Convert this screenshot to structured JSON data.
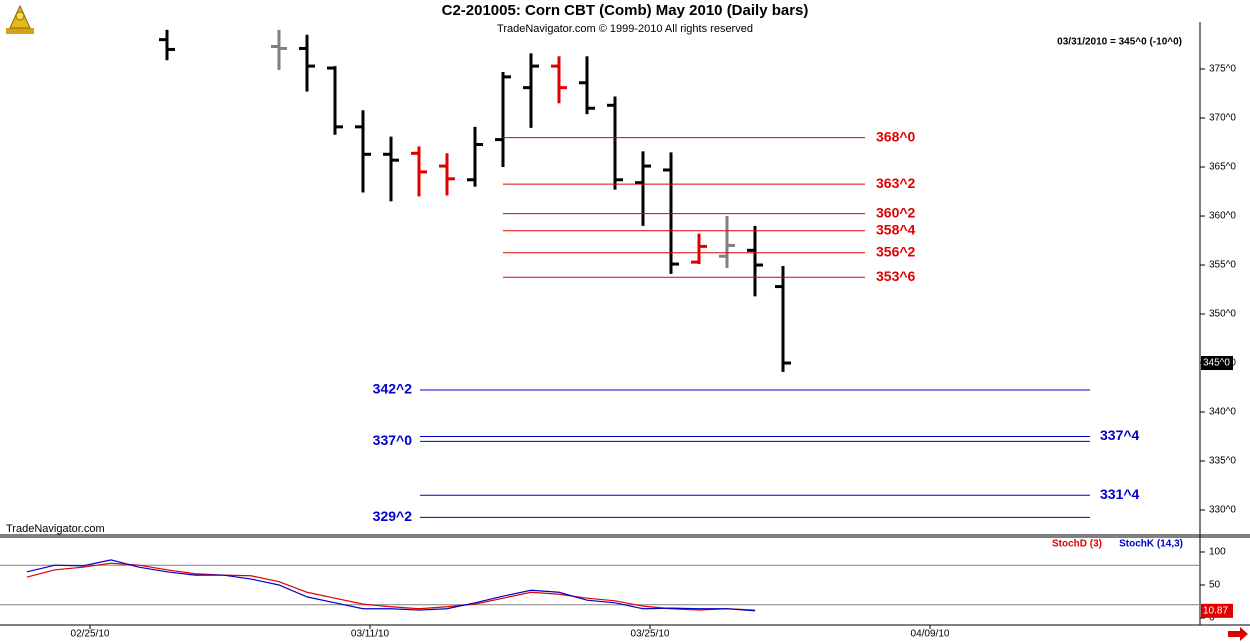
{
  "header": {
    "title": "C2-201005:  Corn CBT (Comb) May 2010  (Daily bars)",
    "subtitle": "TradeNavigator.com © 1999-2010 All rights reserved"
  },
  "chart_data": [
    {
      "type": "ohlc",
      "quote": "03/31/2010 = 345^0 (-10^0)",
      "watermark": "TradeNavigator.com",
      "open": [
        null,
        null,
        null,
        null,
        null,
        378,
        null,
        null,
        null,
        377.3,
        377.1,
        375.1,
        369.1,
        366.3,
        366.4,
        365.1,
        363.7,
        367.8,
        373.1,
        375.3,
        373.6,
        371.3,
        363.4,
        364.7,
        355.3,
        355.9,
        356.5,
        352.8
      ],
      "high": [
        null,
        null,
        null,
        null,
        null,
        379,
        null,
        null,
        null,
        379,
        378.5,
        375.3,
        370.8,
        368.1,
        367.1,
        366.4,
        369.1,
        374.7,
        376.6,
        376.3,
        376.3,
        372.2,
        366.6,
        366.5,
        358.2,
        360,
        359,
        354.9
      ],
      "low": [
        null,
        null,
        null,
        null,
        null,
        375.9,
        null,
        null,
        null,
        374.9,
        372.7,
        368.3,
        362.4,
        361.5,
        362,
        362.1,
        363,
        365,
        369,
        371.5,
        370.4,
        362.7,
        359,
        354.1,
        355.1,
        354.7,
        351.8,
        344.1
      ],
      "close": [
        null,
        null,
        null,
        null,
        null,
        377,
        null,
        null,
        null,
        377.1,
        375.3,
        369.1,
        366.3,
        365.7,
        364.5,
        363.8,
        367.3,
        374.2,
        375.3,
        373.1,
        371,
        363.7,
        365.1,
        355.1,
        356.9,
        357,
        355,
        345
      ],
      "colors": [
        "#000000",
        "#000000",
        "#000000",
        "#000000",
        "#000000",
        "#000000",
        "#000000",
        "#000000",
        "#000000",
        "#808080",
        "#000000",
        "#000000",
        "#000000",
        "#000000",
        "#e00000",
        "#e00000",
        "#000000",
        "#000000",
        "#000000",
        "#e00000",
        "#000000",
        "#000000",
        "#000000",
        "#000000",
        "#e00000",
        "#808080",
        "#000000",
        "#000000"
      ],
      "ylim": [
        327.45,
        379.8
      ],
      "yticks": [
        {
          "value": 330,
          "label": "330^0"
        },
        {
          "value": 335,
          "label": "335^0"
        },
        {
          "value": 340,
          "label": "340^0"
        },
        {
          "value": 345,
          "label": "345^0"
        },
        {
          "value": 350,
          "label": "350^0"
        },
        {
          "value": 355,
          "label": "355^0"
        },
        {
          "value": 360,
          "label": "360^0"
        },
        {
          "value": 365,
          "label": "365^0"
        },
        {
          "value": 370,
          "label": "370^0"
        },
        {
          "value": 375,
          "label": "375^0"
        }
      ],
      "last": {
        "value": 345,
        "label": "345^0"
      },
      "levels": [
        {
          "value": 368,
          "label": "368^0",
          "color": "#e00000",
          "side": "right"
        },
        {
          "value": 363.25,
          "label": "363^2",
          "color": "#e00000",
          "side": "right"
        },
        {
          "value": 360.25,
          "label": "360^2",
          "color": "#e00000",
          "side": "right"
        },
        {
          "value": 358.5,
          "label": "358^4",
          "color": "#e00000",
          "side": "right"
        },
        {
          "value": 356.25,
          "label": "356^2",
          "color": "#e00000",
          "side": "right"
        },
        {
          "value": 353.75,
          "label": "353^6",
          "color": "#e00000",
          "side": "right"
        },
        {
          "value": 342.25,
          "label": "342^2",
          "color": "#0000cc",
          "side": "left"
        },
        {
          "value": 337.5,
          "label": "337^4",
          "color": "#0000cc",
          "side": "right"
        },
        {
          "value": 337,
          "label": "337^0",
          "color": "#0000cc",
          "side": "left"
        },
        {
          "value": 331.5,
          "label": "331^4",
          "color": "#0000cc",
          "side": "right"
        },
        {
          "value": 329.25,
          "label": "329^2",
          "color": "#0000cc",
          "side": "left"
        }
      ]
    },
    {
      "type": "line",
      "series": [
        {
          "name": "StochD (3)",
          "color": "#e00000",
          "values": [
            62,
            73,
            77,
            83,
            80,
            73,
            67,
            65,
            64,
            55,
            39,
            30,
            21,
            17,
            14,
            17,
            21,
            30,
            39,
            36,
            30,
            26,
            18,
            14,
            12,
            14,
            12
          ]
        },
        {
          "name": "StochK (14,3)",
          "color": "#0000cc",
          "values": [
            70,
            80,
            79,
            88,
            77,
            70,
            65,
            65,
            59,
            50,
            32,
            23,
            14,
            14,
            12,
            14,
            23,
            33,
            42,
            39,
            27,
            23,
            14,
            15,
            14,
            14,
            10.87
          ]
        }
      ],
      "ylim": [
        -10.6,
        122.7
      ],
      "yticks": [
        0,
        50,
        100
      ],
      "levels": [
        80,
        20
      ],
      "last": 10.87,
      "xticks": [
        {
          "value": 2.25,
          "label": "02/25/10"
        },
        {
          "value": 12.25,
          "label": "03/11/10"
        },
        {
          "value": 22.25,
          "label": "03/25/10"
        },
        {
          "value": 32.25,
          "label": "04/09/10"
        }
      ]
    }
  ]
}
